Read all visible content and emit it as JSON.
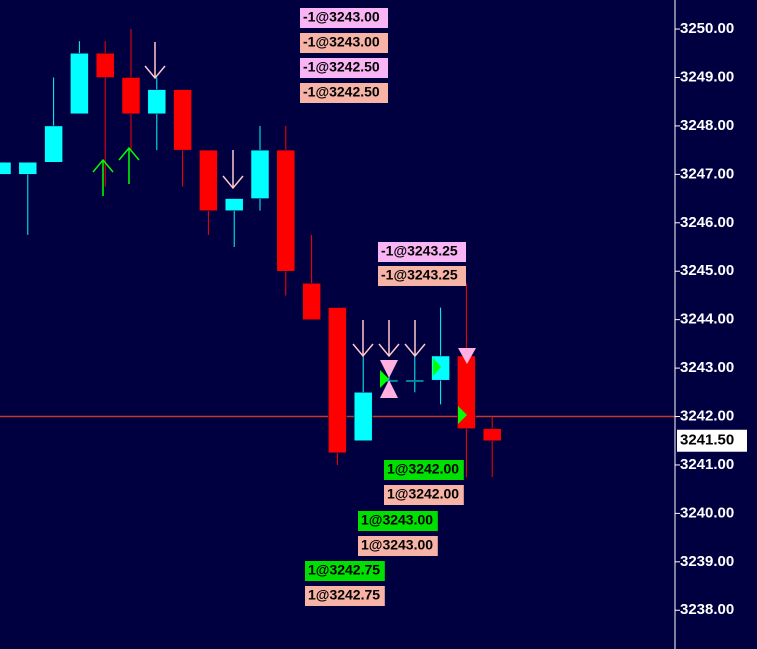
{
  "chart_data": {
    "type": "candlestick",
    "up_color": "#00ffff",
    "down_color": "#ff0000",
    "candles": [
      {
        "open": 3247.0,
        "high": 3247.25,
        "low": 3247.0,
        "close": 3247.25
      },
      {
        "open": 3247.0,
        "high": 3247.25,
        "low": 3245.75,
        "close": 3247.25
      },
      {
        "open": 3247.25,
        "high": 3249.0,
        "low": 3247.25,
        "close": 3248.0
      },
      {
        "open": 3248.25,
        "high": 3249.75,
        "low": 3248.25,
        "close": 3249.5
      },
      {
        "open": 3249.5,
        "high": 3249.75,
        "low": 3246.75,
        "close": 3249.0
      },
      {
        "open": 3249.0,
        "high": 3250.0,
        "low": 3247.5,
        "close": 3248.25
      },
      {
        "open": 3248.25,
        "high": 3249.0,
        "low": 3247.5,
        "close": 3248.75
      },
      {
        "open": 3248.75,
        "high": 3248.75,
        "low": 3246.75,
        "close": 3247.5
      },
      {
        "open": 3247.5,
        "high": 3247.5,
        "low": 3245.75,
        "close": 3246.25
      },
      {
        "open": 3246.25,
        "high": 3246.5,
        "low": 3245.5,
        "close": 3246.5
      },
      {
        "open": 3246.5,
        "high": 3248.0,
        "low": 3246.25,
        "close": 3247.5
      },
      {
        "open": 3247.5,
        "high": 3248.0,
        "low": 3244.5,
        "close": 3245.0
      },
      {
        "open": 3244.75,
        "high": 3245.75,
        "low": 3244.0,
        "close": 3244.0
      },
      {
        "open": 3244.25,
        "high": 3244.25,
        "low": 3241.0,
        "close": 3241.25
      },
      {
        "open": 3241.5,
        "high": 3243.25,
        "low": 3241.5,
        "close": 3242.5
      },
      {
        "open": 3242.75,
        "high": 3243.0,
        "low": 3242.5,
        "close": 3242.75
      },
      {
        "open": 3242.75,
        "high": 3243.25,
        "low": 3242.5,
        "close": 3242.75
      },
      {
        "open": 3242.75,
        "high": 3244.25,
        "low": 3242.25,
        "close": 3243.25
      },
      {
        "open": 3243.25,
        "high": 3244.75,
        "low": 3240.75,
        "close": 3241.75
      },
      {
        "open": 3241.75,
        "high": 3242.0,
        "low": 3240.75,
        "close": 3241.5
      }
    ],
    "ylim": [
      3237.2,
      3250.6
    ],
    "yticks": [
      {
        "value": 3250,
        "label": "3250.00"
      },
      {
        "value": 3249,
        "label": "3249.00"
      },
      {
        "value": 3248,
        "label": "3248.00"
      },
      {
        "value": 3247,
        "label": "3247.00"
      },
      {
        "value": 3246,
        "label": "3246.00"
      },
      {
        "value": 3245,
        "label": "3245.00"
      },
      {
        "value": 3244,
        "label": "3244.00"
      },
      {
        "value": 3243,
        "label": "3243.00"
      },
      {
        "value": 3242,
        "label": "3242.00"
      },
      {
        "value": 3241,
        "label": "3241.00"
      },
      {
        "value": 3240,
        "label": "3240.00"
      },
      {
        "value": 3239,
        "label": "3239.00"
      },
      {
        "value": 3238,
        "label": "3238.00"
      }
    ],
    "hline": {
      "value": 3242,
      "color": "#c0392b"
    },
    "last_price": {
      "value": 3241.5,
      "label": "3241.50"
    },
    "annotations": [
      {
        "text": "-1@3243.00",
        "color": "#f8b4f4"
      },
      {
        "text": "-1@3243.00",
        "color": "#f6b3a6"
      },
      {
        "text": "-1@3242.50",
        "color": "#f8b4f4"
      },
      {
        "text": "-1@3242.50",
        "color": "#f6b3a6"
      },
      {
        "text": "-1@3243.25",
        "color": "#f8b4f4"
      },
      {
        "text": "-1@3243.25",
        "color": "#f6b3a6"
      },
      {
        "text": "1@3242.00",
        "color": "#00e000"
      },
      {
        "text": "1@3242.00",
        "color": "#f6b3a6"
      },
      {
        "text": "1@3243.00",
        "color": "#00e000"
      },
      {
        "text": "1@3243.00",
        "color": "#f6b3a6"
      },
      {
        "text": "1@3242.75",
        "color": "#00e000"
      },
      {
        "text": "1@3242.75",
        "color": "#f6b3a6"
      }
    ]
  }
}
